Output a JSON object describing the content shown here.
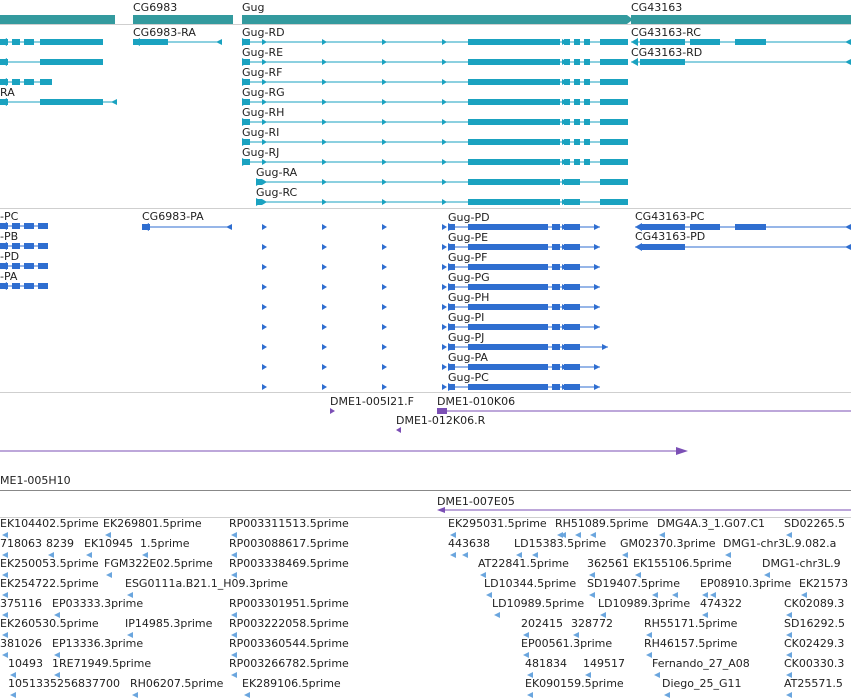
{
  "colors": {
    "gene": "#339a9e",
    "transcript": "#1aa2c0",
    "protein": "#2f6ed0",
    "clone": "#7b4fb5",
    "est": "#6ba6de"
  },
  "genes": {
    "track_id": "genes",
    "labels": [
      "CG6983",
      "Gug",
      "CG43163"
    ]
  },
  "transcripts": {
    "track_id": "transcripts",
    "labels": [
      "CG6983-RA",
      "Gug-RD",
      "Gug-RE",
      "Gug-RF",
      "Gug-RG",
      "Gug-RH",
      "Gug-RI",
      "Gug-RJ",
      "Gug-RA",
      "Gug-RC",
      "CG43163-RC",
      "CG43163-RD",
      "RA"
    ]
  },
  "proteins": {
    "track_id": "proteins",
    "labels": [
      "-PC",
      "-PB",
      "-PD",
      "-PA",
      "CG6983-PA",
      "Gug-PD",
      "Gug-PE",
      "Gug-PF",
      "Gug-PG",
      "Gug-PH",
      "Gug-PI",
      "Gug-PJ",
      "Gug-PA",
      "Gug-PC",
      "CG43163-PC",
      "CG43163-PD"
    ]
  },
  "clones": {
    "track_id": "clones",
    "labels": [
      "DME1-005I21.F",
      "DME1-010K06",
      "DME1-012K06.R",
      "ME1-005H10",
      "DME1-007E05"
    ]
  },
  "ests": {
    "track_id": "ests",
    "labels": [
      "EK104402.5prime",
      "EK269801.5prime",
      "RP003311513.5prime",
      "EK295031.5prime",
      "RH51089.5prime",
      "DMG4A.3_1.G07.C1",
      "SD02265.5",
      "718063",
      "8239",
      "EK10945",
      "1.5prime",
      "RP003088617.5prime",
      "443638",
      "LD15383.5prime",
      "GM02370.3prime",
      "DMG1-chr3L.9.082.a",
      "EK250053.5prime",
      "FGM322E02.5prime",
      "RP003338469.5prime",
      "AT22841.5prime",
      "362561",
      "EK155106.5prime",
      "DMG1-chr3L.9",
      "EK254722.5prime",
      "ESG0111a.B21.1_H09.3prime",
      "LD10344.5prime",
      "SD19407.5prime",
      "EP08910.3prime",
      "EK21573",
      "375116",
      "EP03333.3prime",
      "RP003301951.5prime",
      "LD10989.5prime",
      "LD10989.3prime",
      "474322",
      "CK02089.3",
      "EK260530.5prime",
      "IP14985.3prime",
      "RP003222058.5prime",
      "202415",
      "328772",
      "RH55171.5prime",
      "SD16292.5",
      "381026",
      "EP13336.3prime",
      "RP003360544.5prime",
      "EP00561.3prime",
      "RH46157.5prime",
      "CK02429.3",
      "10493",
      "1RE71949.5prime",
      "RP003266782.5prime",
      "481834",
      "149517",
      "Fernando_27_A08",
      "CK00330.3",
      "1051335256837700",
      "RH06207.5prime",
      "EK289106.5prime",
      "EK090159.5prime",
      "Diego_25_G11",
      "AT25571.5"
    ]
  }
}
